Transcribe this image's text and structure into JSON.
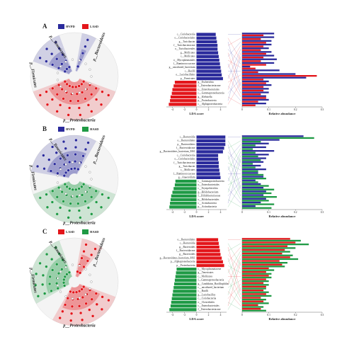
{
  "panels": [
    {
      "label": "A",
      "clade_labels": [
        "p__Bacteroidetes",
        "p__Tenericutes",
        "p__Firmicutes",
        "p__Proteobacteria"
      ]
    },
    {
      "label": "B",
      "clade_labels": [
        "p__Bacteroidetes",
        "p__Tenericutes",
        "p__Firmicutes",
        "p__Proteobacteria"
      ]
    },
    {
      "label": "C",
      "clade_labels": [
        "p__Bacteroidetes",
        "p__Tenericutes",
        "p__Firmicutes",
        "p__Proteobacteria"
      ]
    }
  ],
  "chart_data": [
    {
      "type": "lda",
      "xlabel": "LDA score",
      "xlim": [
        -5,
        5
      ],
      "xticks": [
        -4,
        -2,
        0,
        2,
        4
      ],
      "categories": [
        "c__Coriobacteriia",
        "o__Coriobacteriales",
        "g__Turicibacter",
        "f__Turicibacteraceae",
        "o__Turicibacterales",
        "g__Mollicutes",
        "c__Mollicutes",
        "o__Mycoplasmatales",
        "f__Ruminococcaceae",
        "g__uncultured_bacterium",
        "c__Bacilli",
        "o__Lactobacillales",
        "p__Firmicutes",
        "g__Escherichia",
        "f__Enterobacteriaceae",
        "o__Enterobacteriales",
        "c__Gammaproteobacteria",
        "g__Klebsiella",
        "p__Proteobacteria",
        "c__Alphaproteobacteria"
      ],
      "series": [
        {
          "name": "HVPD",
          "color": "#2b2b9c",
          "values": [
            3.2,
            3.3,
            3.4,
            3.5,
            3.5,
            3.6,
            3.7,
            3.8,
            3.9,
            4.0,
            4.1,
            4.2,
            4.4,
            null,
            null,
            null,
            null,
            null,
            null,
            null
          ]
        },
        {
          "name": "LASD",
          "color": "#e3161b",
          "values": [
            null,
            null,
            null,
            null,
            null,
            null,
            null,
            null,
            null,
            null,
            null,
            null,
            null,
            -3.6,
            -3.8,
            -4.0,
            -4.1,
            -4.3,
            -4.4,
            -4.6
          ]
        }
      ]
    },
    {
      "type": "abundance",
      "xlabel": "Relative abundance",
      "xlim": [
        0,
        0.3
      ],
      "xticks": [
        0,
        0.1,
        0.2,
        0.3
      ],
      "series": [
        {
          "color": "#2b2b9c",
          "values": [
            0.12,
            0.12,
            0.11,
            0.11,
            0.1,
            0.11,
            0.12,
            0.13,
            0.12,
            0.03,
            0.14,
            0.2,
            0.24,
            0.1,
            0.11,
            0.1,
            0.1,
            0.09,
            0.1,
            0.09
          ]
        },
        {
          "color": "#e3161b",
          "values": [
            0.08,
            0.07,
            0.09,
            0.08,
            0.07,
            0.09,
            0.08,
            0.07,
            0.09,
            0.05,
            0.06,
            0.28,
            0.08,
            0.09,
            0.08,
            0.08,
            0.07,
            0.09,
            0.06,
            0.05
          ]
        }
      ]
    },
    {
      "type": "lda",
      "xlabel": "LDA score",
      "xlim": [
        -5,
        5
      ],
      "xticks": [
        -4,
        -2,
        0,
        2,
        4
      ],
      "categories": [
        "c__Bacteroidia",
        "o__Bacteroidales",
        "p__Bacteroidetes",
        "f__Bacteroidaceae",
        "g__Bacteroidetes_bacterium_MS1",
        "c__Coriobacteriia",
        "o__Coriobacteriales",
        "f__Turicibacteraceae",
        "g__Turicibacter",
        "c__Mollicutes",
        "f__Ruminococcaceae",
        "g__Anaerofilum",
        "c__Gammaproteobacteria",
        "o__Enterobacteriales",
        "c__Erysipelotrichia",
        "g__Bifidobacterium",
        "f__Bifidobacteriaceae",
        "o__Bifidobacteriales",
        "c__Actinobacteria",
        "p__Actinobacteria"
      ],
      "series": [
        {
          "name": "HVPD",
          "color": "#2b2b9c",
          "values": [
            4.8,
            4.8,
            4.8,
            4.6,
            4.4,
            3.6,
            3.6,
            3.7,
            3.7,
            3.8,
            3.9,
            4.0,
            null,
            null,
            null,
            null,
            null,
            null,
            null,
            null
          ]
        },
        {
          "name": "HASD",
          "color": "#1f9a45",
          "values": [
            null,
            null,
            null,
            null,
            null,
            null,
            null,
            null,
            null,
            null,
            null,
            null,
            -3.5,
            -3.6,
            -3.8,
            -4.0,
            -4.2,
            -4.3,
            -4.4,
            -4.5
          ]
        }
      ]
    },
    {
      "type": "abundance",
      "xlabel": "Relative abundance",
      "xlim": [
        0,
        0.3
      ],
      "xticks": [
        0,
        0.1,
        0.2,
        0.3
      ],
      "series": [
        {
          "color": "#2b2b9c",
          "values": [
            0.23,
            0.14,
            0.1,
            0.09,
            0.12,
            0.1,
            0.09,
            0.08,
            0.07,
            0.09,
            0.06,
            0.08,
            0.05,
            0.07,
            0.08,
            0.09,
            0.08,
            0.09,
            0.07,
            0.05
          ]
        },
        {
          "color": "#1f9a45",
          "values": [
            0.27,
            0.07,
            0.05,
            0.04,
            0.05,
            0.06,
            0.07,
            0.04,
            0.05,
            0.06,
            0.08,
            0.09,
            0.06,
            0.1,
            0.12,
            0.11,
            0.13,
            0.1,
            0.12,
            0.11
          ]
        }
      ]
    },
    {
      "type": "lda",
      "xlabel": "LDA score",
      "xlim": [
        -5,
        5
      ],
      "xticks": [
        -4,
        -2,
        0,
        2,
        4
      ],
      "categories": [
        "o__Bacteroidales",
        "c__Bacteroidia",
        "g__Bacteroides",
        "f__Bacteroidaceae",
        "g__Bacteroides",
        "g__Bacteroidetes_bacterium_MS1",
        "p__Alphaproteobacteria",
        "p__Proteobacteria",
        "c__Mycoplasmataceae",
        "g__Tenericutes",
        "c__Mollicutes",
        "f__Gammaproteobacteria",
        "g__Candidatus_Bacilliophilus",
        "c__uncultured_bacterium",
        "c__Bacilli",
        "g__Lactobacillus",
        "c__Coriobacteriia",
        "o__Clostridiales",
        "c__Enterobacteriales",
        "f__Enterobacteriaceae"
      ],
      "series": [
        {
          "name": "LASD",
          "color": "#e3161b",
          "values": [
            3.6,
            3.7,
            3.8,
            3.9,
            4.0,
            4.2,
            4.4,
            4.6,
            null,
            null,
            null,
            null,
            null,
            null,
            null,
            null,
            null,
            null,
            null,
            null
          ]
        },
        {
          "name": "HASD",
          "color": "#1f9a45",
          "values": [
            null,
            null,
            null,
            null,
            null,
            null,
            null,
            null,
            -3.3,
            -3.4,
            -3.5,
            -3.6,
            -3.7,
            -3.8,
            -3.9,
            -4.0,
            -4.1,
            -4.2,
            -4.3,
            -4.5
          ]
        }
      ]
    },
    {
      "type": "abundance",
      "xlabel": "Relative abundance",
      "xlim": [
        0,
        0.3
      ],
      "xticks": [
        0,
        0.1,
        0.2,
        0.3
      ],
      "series": [
        {
          "color": "#e3161b",
          "values": [
            0.18,
            0.2,
            0.17,
            0.16,
            0.15,
            0.18,
            0.14,
            0.15,
            0.1,
            0.09,
            0.1,
            0.09,
            0.08,
            0.09,
            0.08,
            0.09,
            0.07,
            0.08,
            0.06,
            0.07
          ]
        },
        {
          "color": "#1f9a45",
          "values": [
            0.22,
            0.25,
            0.2,
            0.18,
            0.19,
            0.21,
            0.17,
            0.16,
            0.12,
            0.11,
            0.11,
            0.1,
            0.1,
            0.09,
            0.1,
            0.11,
            0.09,
            0.1,
            0.08,
            0.09
          ]
        }
      ]
    }
  ]
}
